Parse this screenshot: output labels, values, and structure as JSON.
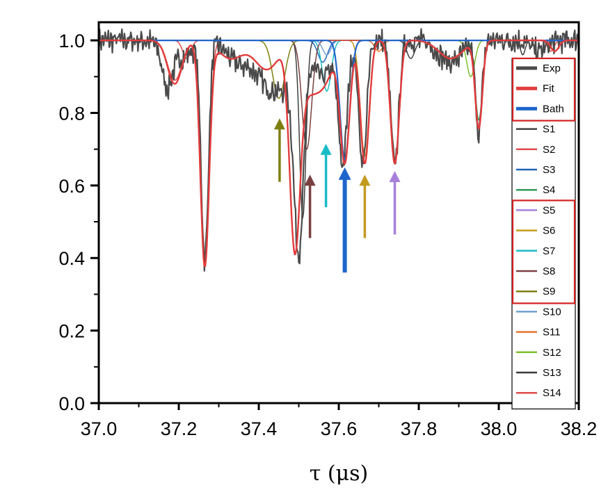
{
  "chart_data": {
    "type": "line",
    "title": "",
    "xlabel": "τ (μs)",
    "ylabel": "",
    "xlim": [
      37.0,
      38.2
    ],
    "ylim": [
      0.0,
      1.05
    ],
    "x_ticks": [
      37.0,
      37.2,
      37.4,
      37.6,
      37.8,
      38.0,
      38.2
    ],
    "x_tick_labels": [
      "37.0",
      "37.2",
      "37.4",
      "37.6",
      "37.8",
      "38.0",
      "38.2"
    ],
    "y_ticks": [
      0.0,
      0.2,
      0.4,
      0.6,
      0.8,
      1.0
    ],
    "y_tick_labels": [
      "0.0",
      "0.2",
      "0.4",
      "0.6",
      "0.8",
      "1.0"
    ],
    "legend_position": "right",
    "legend_highlight_groups": [
      [
        "Exp",
        "Fit",
        "Bath"
      ],
      [
        "S5",
        "S6",
        "S7",
        "S8",
        "S9"
      ]
    ],
    "series": [
      {
        "name": "Exp",
        "color": "#4a4a4a",
        "width": 2.2,
        "kind": "exp",
        "dips": [
          [
            37.17,
            0.1,
            0.012
          ],
          [
            37.2,
            0.05,
            0.03
          ],
          [
            37.265,
            0.6,
            0.009
          ],
          [
            37.35,
            0.06,
            0.03
          ],
          [
            37.42,
            0.1,
            0.03
          ],
          [
            37.47,
            0.1,
            0.03
          ],
          [
            37.5,
            0.52,
            0.012
          ],
          [
            37.56,
            0.1,
            0.025
          ],
          [
            37.61,
            0.33,
            0.011
          ],
          [
            37.66,
            0.34,
            0.01
          ],
          [
            37.74,
            0.34,
            0.01
          ],
          [
            37.88,
            0.06,
            0.03
          ],
          [
            37.95,
            0.25,
            0.008
          ],
          [
            38.1,
            0.03,
            0.02
          ]
        ]
      },
      {
        "name": "Fit",
        "color": "#e23b3b",
        "width": 2.4,
        "dips": [
          [
            37.19,
            0.12,
            0.018
          ],
          [
            37.265,
            0.62,
            0.011
          ],
          [
            37.33,
            0.05,
            0.03
          ],
          [
            37.42,
            0.08,
            0.03
          ],
          [
            37.49,
            0.55,
            0.013
          ],
          [
            37.52,
            0.1,
            0.02
          ],
          [
            37.56,
            0.12,
            0.025
          ],
          [
            37.615,
            0.33,
            0.012
          ],
          [
            37.665,
            0.34,
            0.011
          ],
          [
            37.74,
            0.34,
            0.011
          ],
          [
            37.88,
            0.05,
            0.03
          ],
          [
            37.95,
            0.24,
            0.009
          ],
          [
            38.14,
            0.03,
            0.01
          ]
        ]
      },
      {
        "name": "Bath",
        "color": "#1f66cc",
        "width": 2.2,
        "dips": [
          [
            37.615,
            0.33,
            0.012
          ]
        ]
      },
      {
        "name": "S1",
        "color": "#404040",
        "width": 1.5,
        "dips": [
          [
            37.51,
            0.49,
            0.008
          ],
          [
            37.78,
            0.05,
            0.01
          ]
        ]
      },
      {
        "name": "S2",
        "color": "#e24a4a",
        "width": 1.5,
        "dips": [
          [
            37.265,
            0.6,
            0.011
          ],
          [
            37.19,
            0.11,
            0.018
          ]
        ]
      },
      {
        "name": "S3",
        "color": "#2165b8",
        "width": 1.5,
        "dips": [
          [
            37.56,
            0.06,
            0.012
          ]
        ]
      },
      {
        "name": "S4",
        "color": "#2e9c5a",
        "width": 1.5,
        "dips": [
          [
            37.95,
            0.22,
            0.009
          ]
        ]
      },
      {
        "name": "S5",
        "color": "#a87fdb",
        "width": 1.5,
        "dips": [
          [
            37.74,
            0.33,
            0.011
          ]
        ]
      },
      {
        "name": "S6",
        "color": "#c49a1e",
        "width": 1.5,
        "dips": [
          [
            37.665,
            0.32,
            0.011
          ]
        ]
      },
      {
        "name": "S7",
        "color": "#19bcc6",
        "width": 1.5,
        "dips": [
          [
            37.57,
            0.14,
            0.011
          ]
        ]
      },
      {
        "name": "S8",
        "color": "#7a4040",
        "width": 1.5,
        "dips": [
          [
            37.52,
            0.3,
            0.012
          ]
        ]
      },
      {
        "name": "S9",
        "color": "#7f7f10",
        "width": 1.5,
        "dips": [
          [
            37.45,
            0.16,
            0.015
          ]
        ]
      },
      {
        "name": "S10",
        "color": "#6f9fd1",
        "width": 1.5,
        "dips": [
          [
            37.57,
            0.04,
            0.01
          ]
        ]
      },
      {
        "name": "S11",
        "color": "#e6732a",
        "width": 1.5,
        "dips": [
          [
            37.7,
            0.03,
            0.01
          ]
        ]
      },
      {
        "name": "S12",
        "color": "#7cc12a",
        "width": 1.5,
        "dips": [
          [
            37.93,
            0.1,
            0.01
          ]
        ]
      },
      {
        "name": "S13",
        "color": "#3a3a3a",
        "width": 1.5,
        "dips": [
          [
            38.06,
            0.04,
            0.006
          ]
        ]
      },
      {
        "name": "S14",
        "color": "#e24a4a",
        "width": 1.5,
        "dips": [
          [
            37.22,
            0.05,
            0.01
          ],
          [
            38.13,
            0.03,
            0.008
          ]
        ]
      }
    ],
    "annotations": [
      {
        "name": "arrow-s9",
        "x": 37.452,
        "y_from": 0.61,
        "y_to": 0.785,
        "color": "#7f7f10",
        "thick": false
      },
      {
        "name": "arrow-s8",
        "x": 37.528,
        "y_from": 0.455,
        "y_to": 0.63,
        "color": "#7a4040",
        "thick": false
      },
      {
        "name": "arrow-s7",
        "x": 37.568,
        "y_from": 0.54,
        "y_to": 0.715,
        "color": "#19bcc6",
        "thick": false
      },
      {
        "name": "arrow-bath",
        "x": 37.615,
        "y_from": 0.36,
        "y_to": 0.65,
        "color": "#1f66cc",
        "thick": true
      },
      {
        "name": "arrow-s6",
        "x": 37.665,
        "y_from": 0.455,
        "y_to": 0.63,
        "color": "#c49a1e",
        "thick": false
      },
      {
        "name": "arrow-s5",
        "x": 37.74,
        "y_from": 0.465,
        "y_to": 0.64,
        "color": "#a87fdb",
        "thick": false
      }
    ]
  }
}
